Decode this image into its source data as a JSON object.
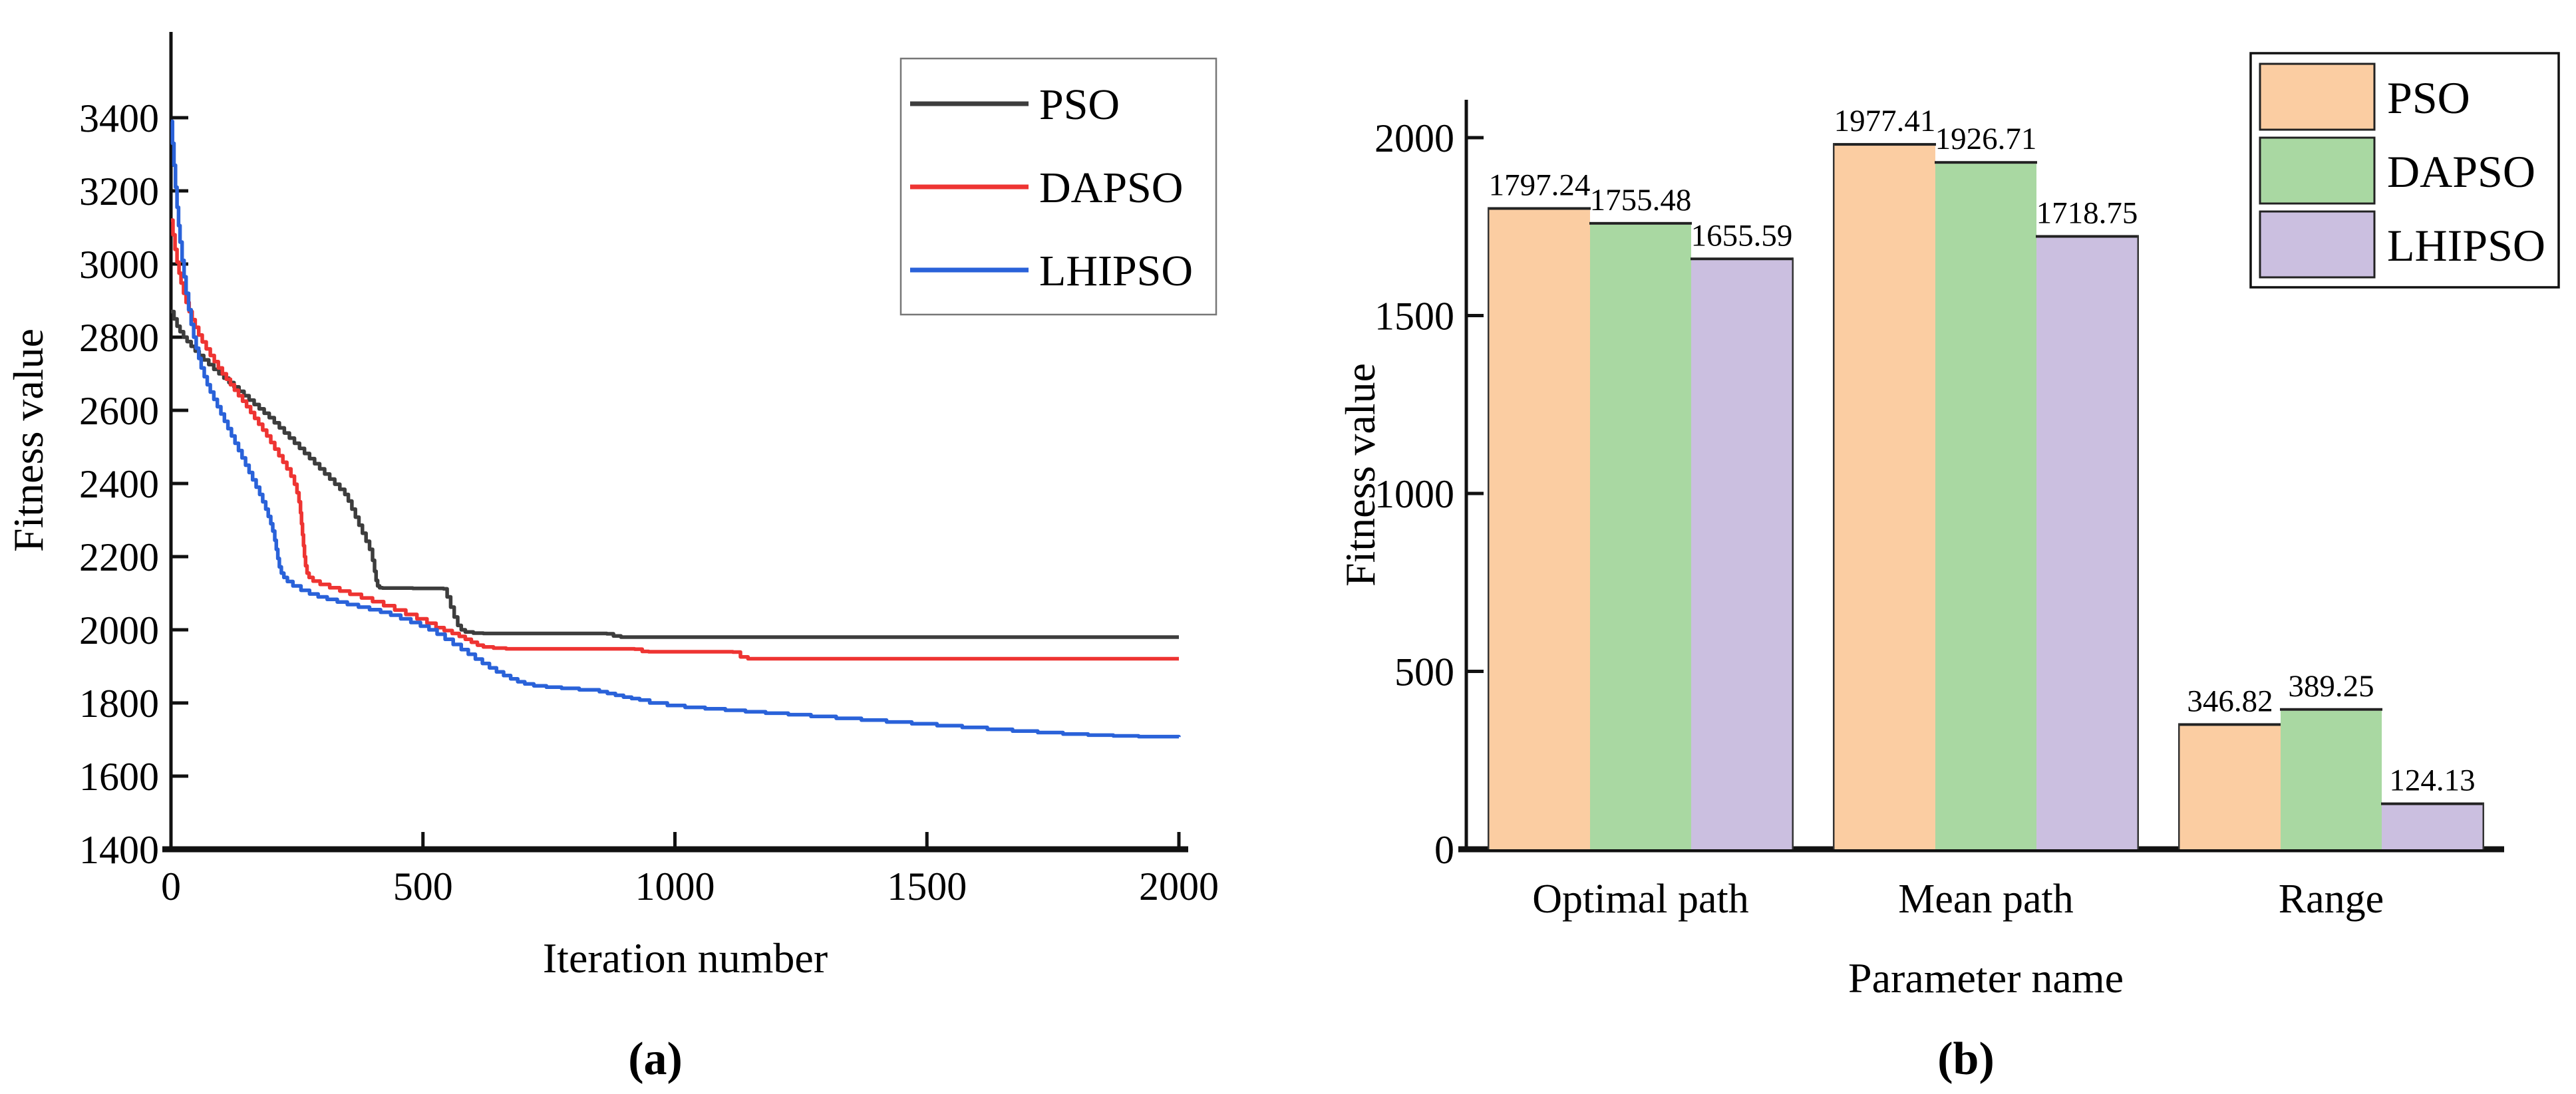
{
  "figure_background": "#ffffff",
  "chart_data": [
    {
      "type": "line",
      "panel": "a",
      "caption": "(a)",
      "xlabel": "Iteration number",
      "ylabel": "Fitness value",
      "xlim": [
        0,
        2000
      ],
      "ylim": [
        1400,
        3635
      ],
      "xticks": [
        "0",
        "500",
        "1000",
        "1500",
        "2000"
      ],
      "xtick_values": [
        0,
        500,
        1000,
        1500,
        2000
      ],
      "yticks": [
        "1400",
        "1600",
        "1800",
        "2000",
        "2200",
        "2400",
        "2600",
        "2800",
        "3000",
        "3200",
        "3400"
      ],
      "ytick_values": [
        1400,
        1600,
        1800,
        2000,
        2200,
        2400,
        2600,
        2800,
        3000,
        3200,
        3400
      ],
      "grid": false,
      "legend_position": "top-right",
      "series": [
        {
          "name": "PSO",
          "color": "#3d3d3d",
          "final_value": 1980,
          "points": [
            [
              0,
              2870
            ],
            [
              6,
              2850
            ],
            [
              12,
              2830
            ],
            [
              18,
              2815
            ],
            [
              25,
              2800
            ],
            [
              32,
              2788
            ],
            [
              40,
              2775
            ],
            [
              48,
              2762
            ],
            [
              56,
              2750
            ],
            [
              65,
              2738
            ],
            [
              75,
              2725
            ],
            [
              85,
              2712
            ],
            [
              95,
              2700
            ],
            [
              105,
              2688
            ],
            [
              115,
              2676
            ],
            [
              125,
              2664
            ],
            [
              135,
              2652
            ],
            [
              145,
              2640
            ],
            [
              155,
              2628
            ],
            [
              165,
              2616
            ],
            [
              175,
              2604
            ],
            [
              185,
              2592
            ],
            [
              195,
              2580
            ],
            [
              205,
              2566
            ],
            [
              215,
              2552
            ],
            [
              225,
              2538
            ],
            [
              235,
              2524
            ],
            [
              245,
              2510
            ],
            [
              255,
              2496
            ],
            [
              265,
              2482
            ],
            [
              275,
              2468
            ],
            [
              285,
              2454
            ],
            [
              295,
              2440
            ],
            [
              305,
              2426
            ],
            [
              315,
              2412
            ],
            [
              325,
              2398
            ],
            [
              335,
              2384
            ],
            [
              345,
              2370
            ],
            [
              352,
              2352
            ],
            [
              359,
              2330
            ],
            [
              366,
              2308
            ],
            [
              373,
              2286
            ],
            [
              380,
              2264
            ],
            [
              387,
              2242
            ],
            [
              394,
              2220
            ],
            [
              400,
              2190
            ],
            [
              404,
              2160
            ],
            [
              407,
              2135
            ],
            [
              410,
              2120
            ],
            [
              414,
              2115
            ],
            [
              420,
              2114
            ],
            [
              480,
              2113
            ],
            [
              541,
              2112
            ],
            [
              548,
              2090
            ],
            [
              555,
              2062
            ],
            [
              562,
              2035
            ],
            [
              569,
              2012
            ],
            [
              576,
              2000
            ],
            [
              584,
              1994
            ],
            [
              600,
              1991
            ],
            [
              620,
              1990
            ],
            [
              865,
              1989
            ],
            [
              878,
              1983
            ],
            [
              893,
              1980
            ],
            [
              2000,
              1980
            ]
          ]
        },
        {
          "name": "DAPSO",
          "color": "#ee3432",
          "final_value": 1921,
          "points": [
            [
              0,
              3120
            ],
            [
              4,
              3080
            ],
            [
              8,
              3040
            ],
            [
              12,
              3005
            ],
            [
              16,
              2975
            ],
            [
              20,
              2948
            ],
            [
              25,
              2920
            ],
            [
              30,
              2895
            ],
            [
              36,
              2870
            ],
            [
              42,
              2848
            ],
            [
              48,
              2827
            ],
            [
              55,
              2806
            ],
            [
              62,
              2787
            ],
            [
              70,
              2768
            ],
            [
              78,
              2750
            ],
            [
              86,
              2733
            ],
            [
              94,
              2716
            ],
            [
              102,
              2700
            ],
            [
              110,
              2685
            ],
            [
              118,
              2670
            ],
            [
              126,
              2655
            ],
            [
              134,
              2640
            ],
            [
              142,
              2625
            ],
            [
              150,
              2610
            ],
            [
              158,
              2594
            ],
            [
              166,
              2578
            ],
            [
              174,
              2562
            ],
            [
              182,
              2546
            ],
            [
              190,
              2530
            ],
            [
              198,
              2512
            ],
            [
              206,
              2494
            ],
            [
              214,
              2476
            ],
            [
              222,
              2458
            ],
            [
              230,
              2440
            ],
            [
              238,
              2420
            ],
            [
              245,
              2398
            ],
            [
              250,
              2375
            ],
            [
              254,
              2350
            ],
            [
              257,
              2320
            ],
            [
              259,
              2290
            ],
            [
              261,
              2260
            ],
            [
              263,
              2230
            ],
            [
              265,
              2200
            ],
            [
              267,
              2175
            ],
            [
              270,
              2155
            ],
            [
              274,
              2143
            ],
            [
              282,
              2133
            ],
            [
              296,
              2124
            ],
            [
              315,
              2115
            ],
            [
              335,
              2106
            ],
            [
              355,
              2097
            ],
            [
              378,
              2087
            ],
            [
              400,
              2077
            ],
            [
              422,
              2066
            ],
            [
              444,
              2054
            ],
            [
              466,
              2042
            ],
            [
              488,
              2030
            ],
            [
              508,
              2018
            ],
            [
              526,
              2006
            ],
            [
              542,
              1998
            ],
            [
              558,
              1990
            ],
            [
              572,
              1982
            ],
            [
              584,
              1974
            ],
            [
              596,
              1966
            ],
            [
              608,
              1958
            ],
            [
              620,
              1953
            ],
            [
              640,
              1950
            ],
            [
              665,
              1948
            ],
            [
              920,
              1947
            ],
            [
              935,
              1941
            ],
            [
              948,
              1940
            ],
            [
              1115,
              1939
            ],
            [
              1130,
              1926
            ],
            [
              1145,
              1921
            ],
            [
              2000,
              1921
            ]
          ]
        },
        {
          "name": "LHIPSO",
          "color": "#2a62d9",
          "final_value": 1707,
          "points": [
            [
              0,
              3390
            ],
            [
              3,
              3330
            ],
            [
              6,
              3270
            ],
            [
              9,
              3210
            ],
            [
              12,
              3155
            ],
            [
              15,
              3105
            ],
            [
              18,
              3060
            ],
            [
              22,
              3010
            ],
            [
              26,
              2965
            ],
            [
              30,
              2920
            ],
            [
              35,
              2875
            ],
            [
              40,
              2835
            ],
            [
              45,
              2800
            ],
            [
              50,
              2770
            ],
            [
              55,
              2742
            ],
            [
              60,
              2716
            ],
            [
              66,
              2692
            ],
            [
              72,
              2670
            ],
            [
              78,
              2650
            ],
            [
              85,
              2630
            ],
            [
              92,
              2610
            ],
            [
              99,
              2590
            ],
            [
              106,
              2570
            ],
            [
              113,
              2550
            ],
            [
              120,
              2530
            ],
            [
              127,
              2510
            ],
            [
              134,
              2490
            ],
            [
              141,
              2470
            ],
            [
              148,
              2450
            ],
            [
              155,
              2430
            ],
            [
              162,
              2410
            ],
            [
              169,
              2390
            ],
            [
              176,
              2370
            ],
            [
              182,
              2350
            ],
            [
              188,
              2330
            ],
            [
              193,
              2310
            ],
            [
              198,
              2290
            ],
            [
              202,
              2270
            ],
            [
              206,
              2245
            ],
            [
              209,
              2220
            ],
            [
              212,
              2195
            ],
            [
              215,
              2172
            ],
            [
              219,
              2155
            ],
            [
              224,
              2143
            ],
            [
              231,
              2132
            ],
            [
              242,
              2120
            ],
            [
              258,
              2108
            ],
            [
              275,
              2098
            ],
            [
              292,
              2090
            ],
            [
              310,
              2083
            ],
            [
              330,
              2076
            ],
            [
              350,
              2069
            ],
            [
              372,
              2062
            ],
            [
              394,
              2055
            ],
            [
              416,
              2048
            ],
            [
              436,
              2040
            ],
            [
              456,
              2030
            ],
            [
              476,
              2020
            ],
            [
              495,
              2010
            ],
            [
              512,
              2000
            ],
            [
              528,
              1988
            ],
            [
              544,
              1974
            ],
            [
              560,
              1960
            ],
            [
              576,
              1946
            ],
            [
              590,
              1933
            ],
            [
              604,
              1920
            ],
            [
              618,
              1908
            ],
            [
              632,
              1896
            ],
            [
              646,
              1885
            ],
            [
              660,
              1875
            ],
            [
              674,
              1866
            ],
            [
              688,
              1858
            ],
            [
              702,
              1852
            ],
            [
              720,
              1847
            ],
            [
              745,
              1843
            ],
            [
              775,
              1840
            ],
            [
              810,
              1836
            ],
            [
              850,
              1831
            ],
            [
              866,
              1826
            ],
            [
              882,
              1821
            ],
            [
              898,
              1816
            ],
            [
              914,
              1812
            ],
            [
              930,
              1808
            ],
            [
              950,
              1800
            ],
            [
              985,
              1793
            ],
            [
              1020,
              1788
            ],
            [
              1060,
              1784
            ],
            [
              1100,
              1780
            ],
            [
              1140,
              1776
            ],
            [
              1180,
              1772
            ],
            [
              1225,
              1768
            ],
            [
              1270,
              1763
            ],
            [
              1320,
              1758
            ],
            [
              1370,
              1753
            ],
            [
              1420,
              1748
            ],
            [
              1470,
              1743
            ],
            [
              1520,
              1738
            ],
            [
              1570,
              1733
            ],
            [
              1620,
              1728
            ],
            [
              1670,
              1723
            ],
            [
              1720,
              1719
            ],
            [
              1770,
              1715
            ],
            [
              1820,
              1712
            ],
            [
              1870,
              1710
            ],
            [
              1920,
              1708
            ],
            [
              2000,
              1707
            ]
          ]
        }
      ]
    },
    {
      "type": "bar",
      "panel": "b",
      "caption": "(b)",
      "xlabel": "Parameter name",
      "ylabel": "Fitness value",
      "ylim": [
        0,
        2200
      ],
      "yticks": [
        "0",
        "500",
        "1000",
        "1500",
        "2000"
      ],
      "ytick_values": [
        0,
        500,
        1000,
        1500,
        2000
      ],
      "grid": false,
      "legend_position": "top-right",
      "bar_labels_visible": true,
      "categories": [
        "Optimal path",
        "Mean path",
        "Range"
      ],
      "series": [
        {
          "name": "PSO",
          "color": "#fbcda2",
          "edge_color": "#2b2b2b",
          "values": [
            1797.24,
            1977.41,
            346.82
          ],
          "value_labels": [
            "1797.24",
            "1977.41",
            "346.82"
          ]
        },
        {
          "name": "DAPSO",
          "color": "#a9d8a2",
          "edge_color": "#2b2b2b",
          "values": [
            1755.48,
            1926.71,
            389.25
          ],
          "value_labels": [
            "1755.48",
            "1926.71",
            "389.25"
          ]
        },
        {
          "name": "LHIPSO",
          "color": "#cbbfe0",
          "edge_color": "#2b2b2b",
          "values": [
            1655.59,
            1718.75,
            124.13
          ],
          "value_labels": [
            "1655.59",
            "1718.75",
            "124.13"
          ]
        }
      ]
    }
  ]
}
